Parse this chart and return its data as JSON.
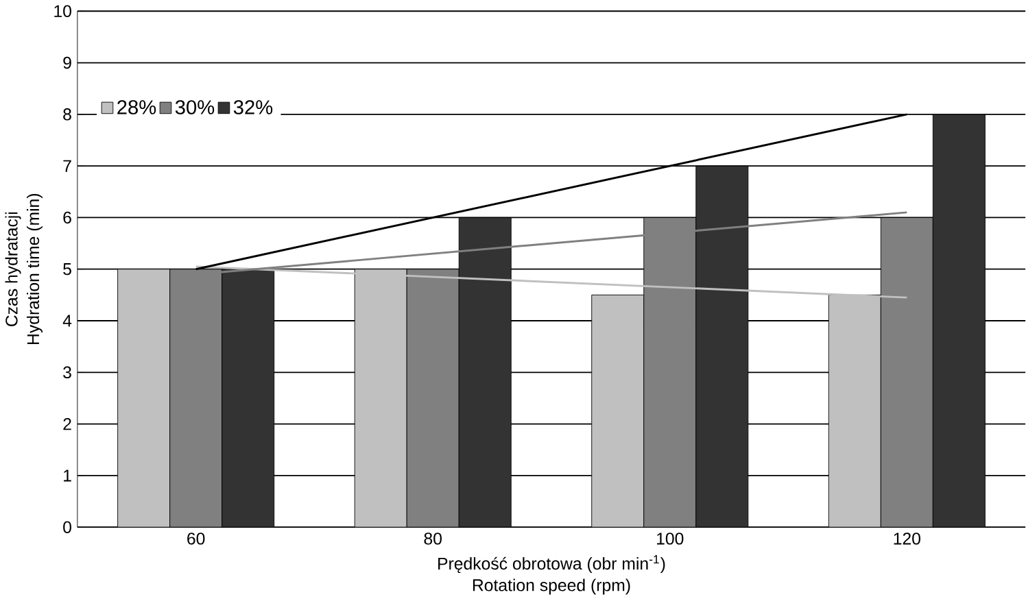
{
  "chart_data": {
    "type": "bar",
    "xlabel": "Prędkość obrotowa (obr min$^{-1}$)\nRotation speed (rpm)",
    "ylabel": "Czas hydratacji\nHydration time (min)",
    "categories": [
      "60",
      "80",
      "100",
      "120"
    ],
    "series": [
      {
        "name": "28%",
        "color": "#c0c0c0",
        "values": [
          5,
          5,
          4.5,
          4.5
        ]
      },
      {
        "name": "30%",
        "color": "#808080",
        "values": [
          5,
          5,
          6,
          6
        ]
      },
      {
        "name": "32%",
        "color": "#333333",
        "values": [
          5,
          6,
          7,
          8
        ]
      },
      {
        "type": "line",
        "color": "#c0c0c0",
        "x": [
          "60",
          "120"
        ],
        "values": [
          5.05,
          4.45
        ]
      },
      {
        "type": "line",
        "color": "#808080",
        "x": [
          "60",
          "120"
        ],
        "values": [
          4.9,
          6.1
        ]
      },
      {
        "type": "line",
        "color": "#000000",
        "x": [
          "60",
          "120"
        ],
        "values": [
          5,
          8
        ]
      }
    ],
    "ylim": [
      0,
      10
    ],
    "yticks": [
      0,
      1,
      2,
      3,
      4,
      5,
      6,
      7,
      8,
      9,
      10
    ],
    "grid": "y",
    "legend": "top left"
  }
}
